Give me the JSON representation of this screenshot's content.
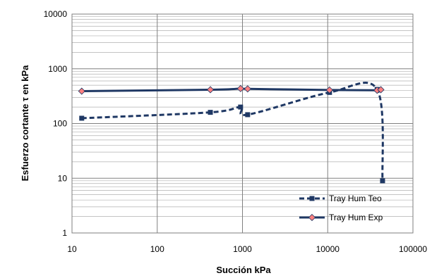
{
  "chart_data": {
    "type": "scatter",
    "title": "",
    "xlabel": "Succión kPa",
    "ylabel": "Esfuerzo cortante τ en kPa",
    "x_scale": "log",
    "y_scale": "log",
    "xlim": [
      10,
      100000
    ],
    "ylim": [
      1,
      10000
    ],
    "x_tick_labels": [
      "10",
      "100",
      "1000",
      "10000",
      "100000"
    ],
    "y_tick_labels": [
      "1",
      "10",
      "100",
      "1000",
      "10000"
    ],
    "grid": true,
    "legend_position": "bottom-right",
    "series": [
      {
        "name": "Tray Hum Teo",
        "color": "#1f3864",
        "line_style": "dashed",
        "marker": "square",
        "x": [
          13,
          420,
          950,
          1150,
          10500,
          38000,
          44000
        ],
        "y": [
          125,
          160,
          200,
          145,
          370,
          420,
          9
        ]
      },
      {
        "name": "Tray Hum Exp",
        "color": "#1f3864",
        "line_style": "solid",
        "marker": "diamond",
        "x": [
          13,
          420,
          950,
          1150,
          10500,
          38000,
          42000
        ],
        "y": [
          390,
          415,
          435,
          430,
          410,
          405,
          415
        ]
      }
    ]
  }
}
